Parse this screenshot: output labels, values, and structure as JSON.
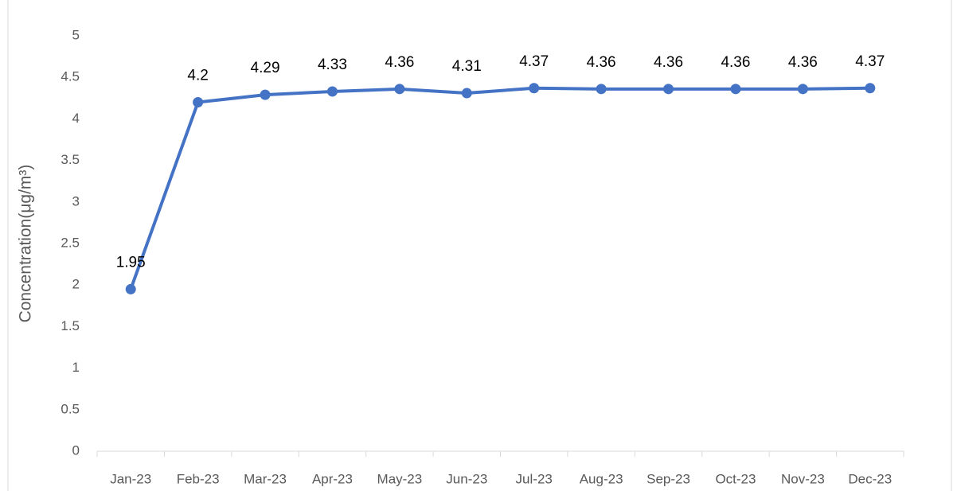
{
  "chart_data": {
    "type": "line",
    "y_label": "Concentration(μg/m³)",
    "categories": [
      "Jan-23",
      "Feb-23",
      "Mar-23",
      "Apr-23",
      "May-23",
      "Jun-23",
      "Jul-23",
      "Aug-23",
      "Sep-23",
      "Oct-23",
      "Nov-23",
      "Dec-23"
    ],
    "values": [
      1.95,
      4.2,
      4.29,
      4.33,
      4.36,
      4.31,
      4.37,
      4.36,
      4.36,
      4.36,
      4.36,
      4.37
    ],
    "color": "#4472c4",
    "ylim": [
      0,
      5
    ],
    "yticks": [
      0,
      0.5,
      1,
      1.5,
      2,
      2.5,
      3,
      3.5,
      4,
      4.5,
      5
    ],
    "grid": false,
    "data_labels": true
  }
}
